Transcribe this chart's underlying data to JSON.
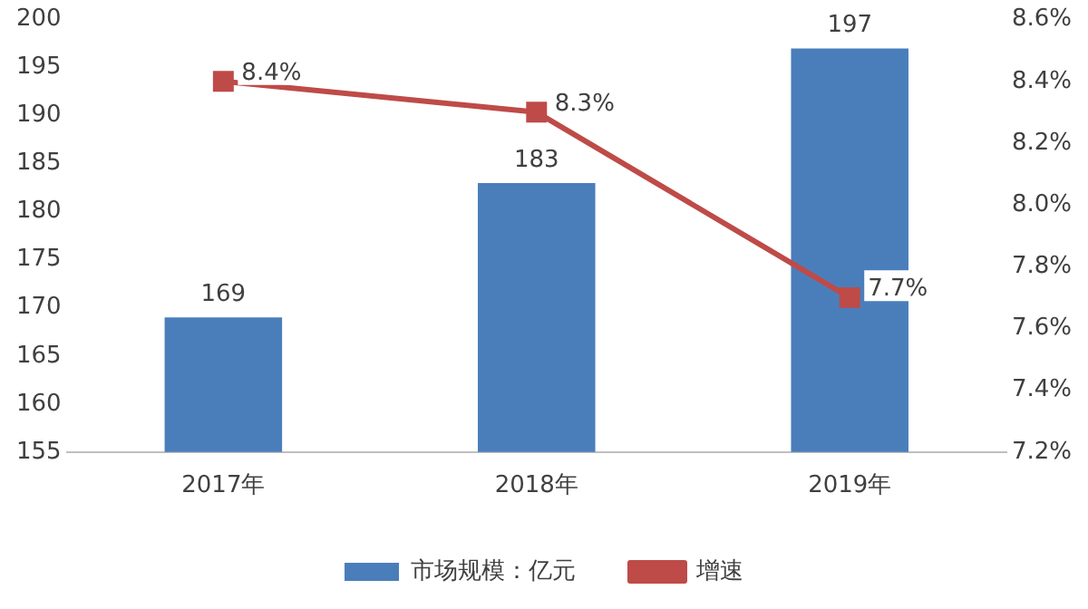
{
  "chart_data": {
    "type": "bar",
    "categories": [
      "2017年",
      "2018年",
      "2019年"
    ],
    "series": [
      {
        "name": "市场规模：亿元",
        "color": "#4a7ebb",
        "values": [
          169,
          183,
          197
        ],
        "value_labels": [
          "169",
          "183",
          "197"
        ]
      },
      {
        "name": "增速",
        "type": "line",
        "axis": "y2",
        "color": "#be4b48",
        "values": [
          8.4,
          8.3,
          7.7
        ],
        "value_labels": [
          "8.4%",
          "8.3%",
          "7.7%"
        ],
        "marker": "square"
      }
    ],
    "ylim": [
      155,
      200
    ],
    "yticks": [
      155,
      160,
      165,
      170,
      175,
      180,
      185,
      190,
      195,
      200
    ],
    "y2lim": [
      7.2,
      8.6
    ],
    "y2ticks": [
      {
        "value": 7.2,
        "label": "7.2%"
      },
      {
        "value": 7.4,
        "label": "7.4%"
      },
      {
        "value": 7.6,
        "label": "7.6%"
      },
      {
        "value": 7.8,
        "label": "7.8%"
      },
      {
        "value": 8.0,
        "label": "8.0%"
      },
      {
        "value": 8.2,
        "label": "8.2%"
      },
      {
        "value": 8.4,
        "label": "8.4%"
      },
      {
        "value": 8.6,
        "label": "8.6%"
      }
    ],
    "grid": false,
    "legend": "bottom"
  }
}
